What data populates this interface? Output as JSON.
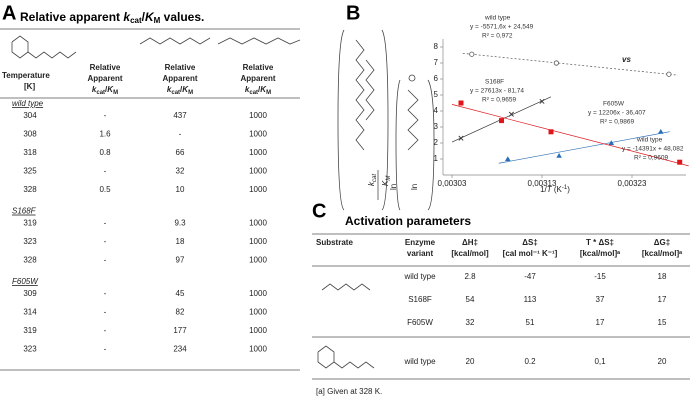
{
  "panels": {
    "a": "A",
    "b": "B",
    "c": "C"
  },
  "table_a": {
    "title": [
      "Relative apparent ",
      "k",
      "cat",
      "/",
      "K",
      "M",
      " values."
    ],
    "headers": {
      "temperature": [
        "Temperature",
        "[K]"
      ],
      "relative": [
        "Relative",
        "Apparent"
      ],
      "ratio": [
        "k",
        "cat",
        "/",
        "K",
        "M"
      ]
    },
    "groups": [
      {
        "name": "wild type",
        "rows": [
          [
            "304",
            "-",
            "437",
            "1000"
          ],
          [
            "308",
            "1.6",
            "-",
            "1000"
          ],
          [
            "318",
            "0.8",
            "66",
            "1000"
          ],
          [
            "325",
            "-",
            "32",
            "1000"
          ],
          [
            "328",
            "0.5",
            "10",
            "1000"
          ]
        ]
      },
      {
        "name": "S168F",
        "rows": [
          [
            "319",
            "-",
            "9.3",
            "1000"
          ],
          [
            "323",
            "-",
            "18",
            "1000"
          ],
          [
            "328",
            "-",
            "97",
            "1000"
          ]
        ]
      },
      {
        "name": "F605W",
        "rows": [
          [
            "309",
            "-",
            "45",
            "1000"
          ],
          [
            "314",
            "-",
            "82",
            "1000"
          ],
          [
            "319",
            "-",
            "177",
            "1000"
          ],
          [
            "323",
            "-",
            "234",
            "1000"
          ]
        ]
      }
    ]
  },
  "chart_data": {
    "type": "scatter",
    "ylabel": [
      "ln",
      "k",
      "cat",
      "K",
      "M"
    ],
    "xlabel": [
      "1/",
      "T",
      " (K",
      "-1",
      ")"
    ],
    "annotation": "vs",
    "xlim": [
      0.00302,
      0.00329
    ],
    "xticks": [
      {
        "value": 0.00303,
        "label": "0,00303"
      },
      {
        "value": 0.00313,
        "label": "0,00313"
      },
      {
        "value": 0.00323,
        "label": "0,00323"
      }
    ],
    "ylim": [
      0,
      8.5
    ],
    "yticks": [
      1,
      2,
      3,
      4,
      5,
      6,
      7,
      8
    ],
    "series": [
      {
        "name": "wild type",
        "equation": "y = -5571,6x + 24,549",
        "r2": "R² = 0,972",
        "marker": "circle-open",
        "color": "#555555",
        "line": "dotted",
        "x": [
          0.003052,
          0.003146,
          0.003271
        ],
        "values": [
          7.55,
          7.0,
          6.3
        ]
      },
      {
        "name": "S168F",
        "equation": "y = 27613x - 81,74",
        "r2": "R² = 0,9659",
        "marker": "x",
        "color": "#333333",
        "line": "solid",
        "x": [
          0.00304,
          0.003096,
          0.00313
        ],
        "values": [
          2.3,
          3.8,
          4.6
        ]
      },
      {
        "name": "F605W",
        "equation": "y = 12206x - 36,407",
        "r2": "R² = 0,9869",
        "marker": "triangle",
        "color": "#2a6fb5",
        "line": "solid",
        "x": [
          0.003092,
          0.003149,
          0.003207,
          0.003262
        ],
        "values": [
          1.0,
          1.2,
          2.0,
          2.7
        ]
      },
      {
        "name": "wild type",
        "equation": "y = -14391x + 48,082",
        "r2": "R² = 0,9609",
        "marker": "square",
        "color": "#e0151b",
        "line": "solid",
        "x": [
          0.00304,
          0.003085,
          0.00314,
          0.003283
        ],
        "values": [
          4.5,
          3.4,
          2.7,
          0.8
        ]
      }
    ]
  },
  "table_c": {
    "title": "Activation parameters",
    "headers": [
      [
        "Substrate"
      ],
      [
        "Enzyme",
        "variant"
      ],
      [
        "ΔH‡",
        "[kcal/mol]"
      ],
      [
        "ΔS‡",
        "[cal mol⁻¹ K⁻¹]"
      ],
      [
        "T * ΔS‡",
        "[kcal/mol]ᵃ"
      ],
      [
        "ΔG‡",
        "[kcal/mol]ᵃ"
      ]
    ],
    "rows": [
      {
        "variant": "wild type",
        "values": [
          "2.8",
          "-47",
          "-15",
          "18"
        ]
      },
      {
        "variant": "S168F",
        "values": [
          "54",
          "113",
          "37",
          "17"
        ]
      },
      {
        "variant": "F605W",
        "values": [
          "32",
          "51",
          "17",
          "15"
        ]
      },
      {
        "variant": "wild type",
        "values": [
          "20",
          "0.2",
          "0,1",
          "20"
        ]
      }
    ],
    "footnote": "[a] Given at 328 K."
  }
}
